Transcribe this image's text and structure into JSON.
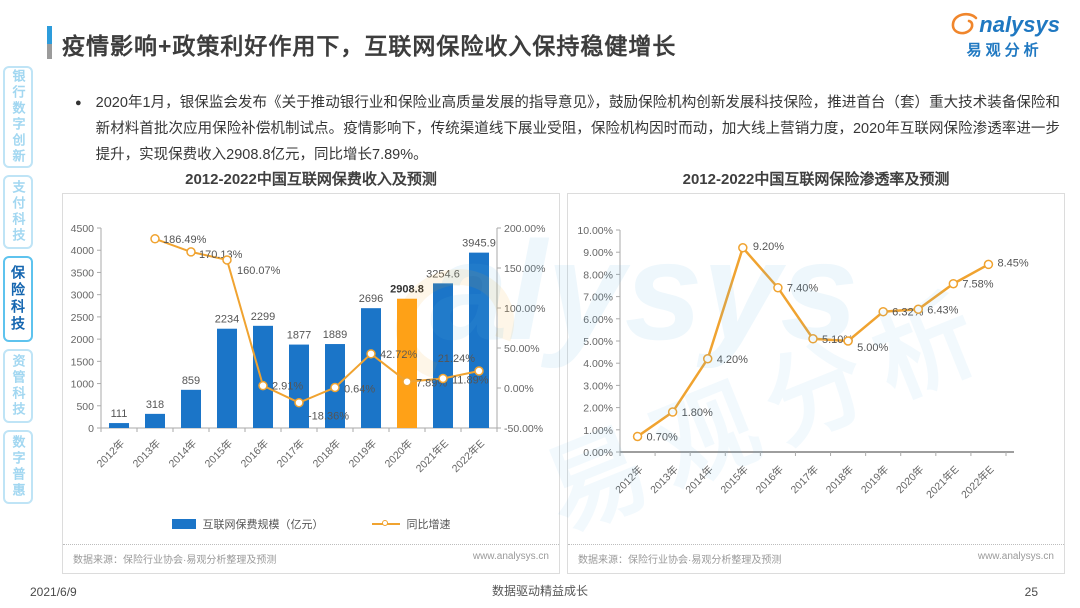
{
  "header": {
    "title": "疫情影响+政策利好作用下，互联网保险收入保持稳健增长",
    "logo": {
      "brand": "nalysys",
      "brand_cn": "易观分析"
    }
  },
  "sidebar": {
    "items": [
      {
        "label": "银行数字创新",
        "active": false
      },
      {
        "label": "支付科技",
        "active": false
      },
      {
        "label": "保险科技",
        "active": true
      },
      {
        "label": "资管科技",
        "active": false
      },
      {
        "label": "数字普惠",
        "active": false
      }
    ]
  },
  "intro": {
    "bullet": "●",
    "text": "2020年1月，银保监会发布《关于推动银行业和保险业高质量发展的指导意见》，鼓励保险机构创新发展科技保险，推进首台（套）重大技术装备保险和新材料首批次应用保险补偿机制试点。疫情影响下，传统渠道线下展业受阻，保险机构因时而动，加大线上营销力度，2020年互联网保险渗透率进一步提升，实现保费收入2908.8亿元，同比增长7.89%。"
  },
  "colors": {
    "accent_blue": "#2d9cdb",
    "bar_blue": "#1b75c8",
    "highlight_orange": "#ffa117",
    "line_orange": "#f0a330"
  },
  "chart_data": [
    {
      "type": "bar",
      "title": "2012-2022中国互联网保费收入及预测",
      "categories": [
        "2012年",
        "2013年",
        "2014年",
        "2015年",
        "2016年",
        "2017年",
        "2018年",
        "2019年",
        "2020年",
        "2021年E",
        "2022年E"
      ],
      "series": [
        {
          "name": "互联网保费规模（亿元）",
          "type": "bar",
          "color": "#1b75c8",
          "highlight_index": 8,
          "highlight_color": "#ffa117",
          "values": [
            111,
            318,
            859,
            2234,
            2299,
            1877,
            1889,
            2696,
            2908.8,
            3254.6,
            3945.9
          ],
          "labels": [
            "111",
            "318",
            "859",
            "2234",
            "2299",
            "1877",
            "1889",
            "2696",
            "2908.8",
            "3254.6",
            "3945.9"
          ]
        },
        {
          "name": "同比增速",
          "type": "line",
          "color": "#f0a330",
          "values": [
            null,
            186.49,
            170.13,
            160.07,
            2.91,
            -18.36,
            0.64,
            42.72,
            7.89,
            11.89,
            21.24
          ],
          "labels": [
            null,
            "186.49%",
            "170.13%",
            "160.07%",
            "2.91%",
            "-18.36%",
            "0.64%",
            "42.72%",
            "7.89%",
            "11.89%",
            "21.24%"
          ]
        }
      ],
      "y_left": {
        "min": 0,
        "max": 4500,
        "step": 500
      },
      "y_right": {
        "min": -50,
        "max": 200,
        "step": 50
      },
      "grid": false,
      "legend_position": "bottom",
      "source": "数据来源：保险行业协会·易观分析整理及预测",
      "site": "www.analysys.cn"
    },
    {
      "type": "line",
      "title": "2012-2022中国互联网保险渗透率及预测",
      "categories": [
        "2012年",
        "2013年",
        "2014年",
        "2015年",
        "2016年",
        "2017年",
        "2018年",
        "2019年",
        "2020年",
        "2021年E",
        "2022年E"
      ],
      "color": "#f0a330",
      "values": [
        0.7,
        1.8,
        4.2,
        9.2,
        7.4,
        5.1,
        5.0,
        6.32,
        6.43,
        7.58,
        8.45
      ],
      "labels": [
        "0.70%",
        "1.80%",
        "4.20%",
        "9.20%",
        "7.40%",
        "5.10%",
        "5.00%",
        "6.32%",
        "6.43%",
        "7.58%",
        "8.45%"
      ],
      "y": {
        "min": 0,
        "max": 10,
        "step": 1
      },
      "grid": false,
      "source": "数据来源：保险行业协会·易观分析整理及预测",
      "site": "www.analysys.cn"
    }
  ],
  "footer": {
    "date": "2021/6/9",
    "slogan": "数据驱动精益成长",
    "page": "25"
  }
}
